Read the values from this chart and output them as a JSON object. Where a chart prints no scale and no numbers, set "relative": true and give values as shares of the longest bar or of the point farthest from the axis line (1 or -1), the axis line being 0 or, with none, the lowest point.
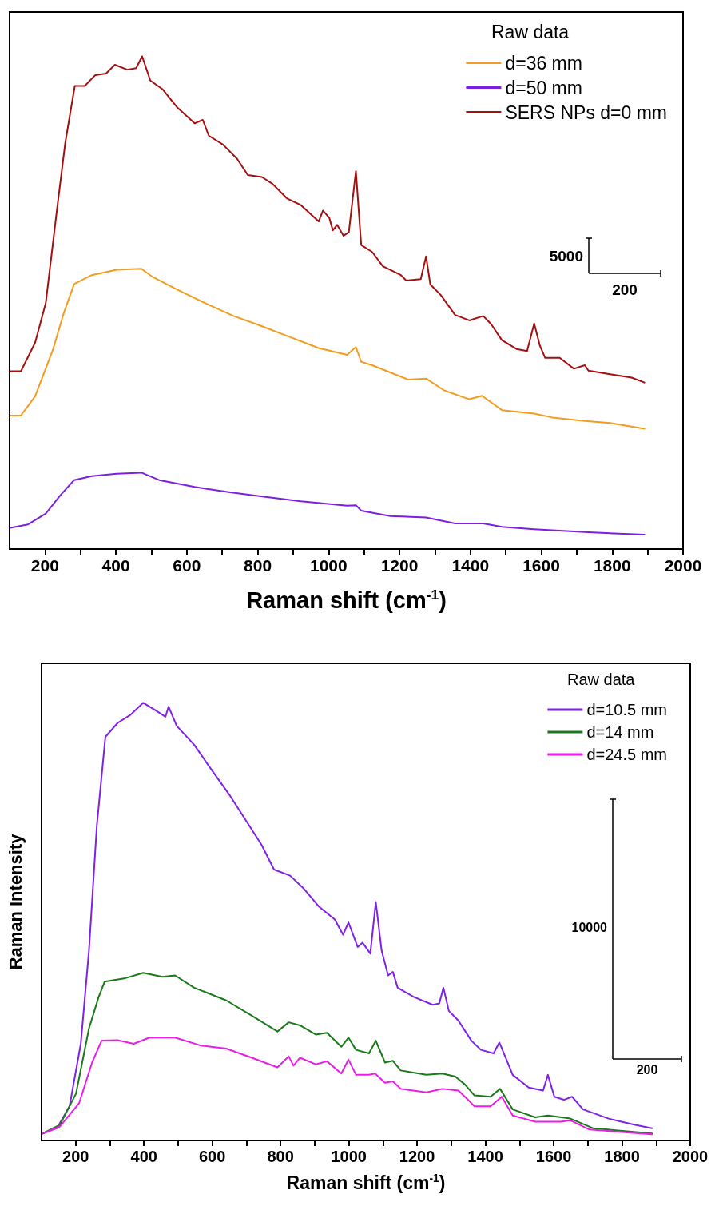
{
  "chart_data": [
    {
      "type": "line",
      "xlabel": "Raman shift (cm$^{-1}$)",
      "legend_title": "Raw data",
      "relative": true,
      "xlim": [
        100,
        2000
      ],
      "xticks": [
        200,
        {
          "value": 300,
          "label": null
        },
        400,
        {
          "value": 500,
          "label": null
        },
        600,
        {
          "value": 700,
          "label": null
        },
        800,
        {
          "value": 900,
          "label": null
        },
        1000,
        {
          "value": 1100,
          "label": null
        },
        1200,
        {
          "value": 1300,
          "label": null
        },
        1400,
        {
          "value": 1500,
          "label": null
        },
        1600,
        {
          "value": 1700,
          "label": null
        },
        1800,
        {
          "value": 1900,
          "label": null
        },
        2000
      ],
      "tick_labels": "x",
      "grid": false,
      "legend": "top right",
      "marker": "none",
      "line_style": "solid",
      "annotations": [
        "5000",
        "200"
      ],
      "series": [
        {
          "name": "d=36 mm",
          "color": "#f39c1f",
          "x": [
            102,
            132,
            172,
            222,
            252,
            282,
            332,
            402,
            472,
            502,
            572,
            652,
            732,
            802,
            892,
            972,
            1052,
            1077,
            1092,
            1123,
            1224,
            1275,
            1326,
            1397,
            1433,
            1489,
            1580,
            1631,
            1723,
            1794,
            1891
          ],
          "values": [
            0.271,
            0.271,
            0.31,
            0.404,
            0.477,
            0.538,
            0.556,
            0.567,
            0.569,
            0.553,
            0.527,
            0.499,
            0.473,
            0.455,
            0.43,
            0.408,
            0.394,
            0.41,
            0.38,
            0.373,
            0.344,
            0.346,
            0.322,
            0.304,
            0.311,
            0.282,
            0.275,
            0.267,
            0.26,
            0.256,
            0.244
          ]
        },
        {
          "name": "d=50 mm",
          "color": "#7b1fe0",
          "x": [
            102,
            152,
            202,
            242,
            282,
            332,
            402,
            472,
            522,
            622,
            722,
            822,
            922,
            1052,
            1077,
            1092,
            1174,
            1275,
            1357,
            1436,
            1489,
            1580,
            1733,
            1891
          ],
          "values": [
            0.043,
            0.05,
            0.072,
            0.108,
            0.14,
            0.148,
            0.153,
            0.155,
            0.14,
            0.126,
            0.115,
            0.106,
            0.097,
            0.088,
            0.089,
            0.078,
            0.067,
            0.064,
            0.052,
            0.052,
            0.045,
            0.04,
            0.034,
            0.029
          ]
        },
        {
          "name": "SERS NPs d=0 mm",
          "color": "#a50f0f",
          "x": [
            102,
            132,
            172,
            202,
            232,
            257,
            284,
            312,
            342,
            372,
            397,
            432,
            457,
            474,
            497,
            532,
            572,
            622,
            645,
            662,
            702,
            742,
            772,
            812,
            842,
            882,
            922,
            972,
            984,
            1002,
            1012,
            1024,
            1042,
            1057,
            1077,
            1092,
            1123,
            1153,
            1204,
            1219,
            1260,
            1275,
            1287,
            1316,
            1357,
            1397,
            1436,
            1458,
            1489,
            1530,
            1560,
            1580,
            1596,
            1611,
            1652,
            1692,
            1723,
            1733,
            1794,
            1855,
            1891
          ],
          "values": [
            0.361,
            0.361,
            0.419,
            0.499,
            0.679,
            0.824,
            0.94,
            0.94,
            0.962,
            0.965,
            0.983,
            0.973,
            0.976,
            1.0,
            0.951,
            0.933,
            0.897,
            0.864,
            0.871,
            0.839,
            0.821,
            0.792,
            0.759,
            0.755,
            0.741,
            0.712,
            0.698,
            0.665,
            0.687,
            0.672,
            0.647,
            0.658,
            0.636,
            0.643,
            0.767,
            0.617,
            0.603,
            0.574,
            0.556,
            0.545,
            0.548,
            0.594,
            0.537,
            0.516,
            0.475,
            0.464,
            0.473,
            0.457,
            0.424,
            0.406,
            0.402,
            0.458,
            0.413,
            0.388,
            0.388,
            0.366,
            0.373,
            0.362,
            0.355,
            0.348,
            0.338
          ]
        }
      ]
    },
    {
      "type": "line",
      "xlabel": "Raman shift (cm$^{-1}$)",
      "ylabel": "Raman Intensity",
      "legend_title": "Raw data",
      "relative": true,
      "xlim": [
        100,
        2000
      ],
      "xticks": [
        200,
        {
          "value": 300,
          "label": null
        },
        400,
        {
          "value": 500,
          "label": null
        },
        600,
        {
          "value": 700,
          "label": null
        },
        800,
        {
          "value": 900,
          "label": null
        },
        1000,
        {
          "value": 1100,
          "label": null
        },
        1200,
        {
          "value": 1300,
          "label": null
        },
        1400,
        {
          "value": 1500,
          "label": null
        },
        1600,
        {
          "value": 1700,
          "label": null
        },
        1800,
        {
          "value": 1900,
          "label": null
        },
        2000
      ],
      "tick_labels": "x",
      "grid": false,
      "legend": "top right",
      "marker": "none",
      "line_style": "solid",
      "annotations": [
        "10000",
        "200"
      ],
      "series": [
        {
          "name": "d=10.5 mm",
          "color": "#7f22e8",
          "x": [
            103,
            145,
            182,
            215,
            239,
            262,
            287,
            323,
            360,
            398,
            435,
            463,
            472,
            496,
            547,
            604,
            650,
            697,
            744,
            781,
            828,
            866,
            913,
            959,
            983,
            999,
            1026,
            1040,
            1063,
            1079,
            1096,
            1115,
            1129,
            1143,
            1190,
            1246,
            1265,
            1277,
            1293,
            1321,
            1359,
            1387,
            1424,
            1441,
            1480,
            1527,
            1569,
            1583,
            1602,
            1630,
            1654,
            1686,
            1761,
            1836,
            1888
          ],
          "values": [
            0.016,
            0.028,
            0.078,
            0.221,
            0.434,
            0.719,
            0.922,
            0.954,
            0.972,
            1.0,
            0.982,
            0.968,
            0.991,
            0.947,
            0.904,
            0.84,
            0.79,
            0.733,
            0.676,
            0.619,
            0.605,
            0.577,
            0.534,
            0.505,
            0.47,
            0.498,
            0.442,
            0.452,
            0.427,
            0.545,
            0.434,
            0.377,
            0.385,
            0.349,
            0.328,
            0.31,
            0.313,
            0.349,
            0.296,
            0.274,
            0.228,
            0.207,
            0.199,
            0.224,
            0.15,
            0.121,
            0.114,
            0.15,
            0.1,
            0.093,
            0.1,
            0.071,
            0.05,
            0.036,
            0.028
          ]
        },
        {
          "name": "d=14 mm",
          "color": "#1a7a1a",
          "x": [
            103,
            154,
            201,
            239,
            267,
            285,
            342,
            398,
            454,
            491,
            547,
            641,
            716,
            791,
            824,
            857,
            903,
            936,
            978,
            999,
            1021,
            1059,
            1079,
            1106,
            1129,
            1152,
            1227,
            1274,
            1312,
            1340,
            1368,
            1415,
            1443,
            1480,
            1546,
            1583,
            1649,
            1715,
            1888
          ],
          "values": [
            0.016,
            0.036,
            0.107,
            0.256,
            0.327,
            0.363,
            0.37,
            0.383,
            0.374,
            0.377,
            0.349,
            0.32,
            0.285,
            0.249,
            0.27,
            0.263,
            0.242,
            0.246,
            0.214,
            0.235,
            0.207,
            0.199,
            0.228,
            0.178,
            0.182,
            0.16,
            0.15,
            0.153,
            0.146,
            0.128,
            0.103,
            0.1,
            0.118,
            0.071,
            0.053,
            0.057,
            0.05,
            0.028,
            0.016
          ]
        },
        {
          "name": "d=24.5 mm",
          "color": "#e81ee8",
          "x": [
            103,
            154,
            210,
            248,
            276,
            323,
            370,
            416,
            491,
            566,
            641,
            716,
            791,
            824,
            838,
            857,
            903,
            936,
            978,
            999,
            1021,
            1059,
            1077,
            1106,
            1129,
            1152,
            1227,
            1274,
            1321,
            1349,
            1368,
            1415,
            1448,
            1480,
            1546,
            1621,
            1649,
            1705,
            1888
          ],
          "values": [
            0.016,
            0.032,
            0.085,
            0.178,
            0.228,
            0.229,
            0.221,
            0.235,
            0.235,
            0.217,
            0.21,
            0.189,
            0.167,
            0.192,
            0.171,
            0.189,
            0.174,
            0.181,
            0.153,
            0.185,
            0.15,
            0.15,
            0.153,
            0.132,
            0.135,
            0.118,
            0.11,
            0.118,
            0.114,
            0.093,
            0.078,
            0.078,
            0.1,
            0.057,
            0.043,
            0.043,
            0.046,
            0.025,
            0.014
          ]
        }
      ]
    }
  ]
}
